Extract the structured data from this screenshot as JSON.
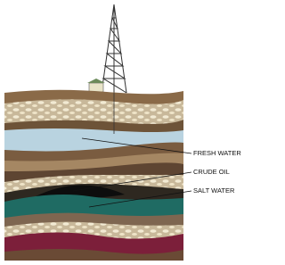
{
  "labels": {
    "fresh_water": "FRESH WATER",
    "crude_oil": "CRUDE OIL",
    "salt_water": "SALT WATER"
  }
}
